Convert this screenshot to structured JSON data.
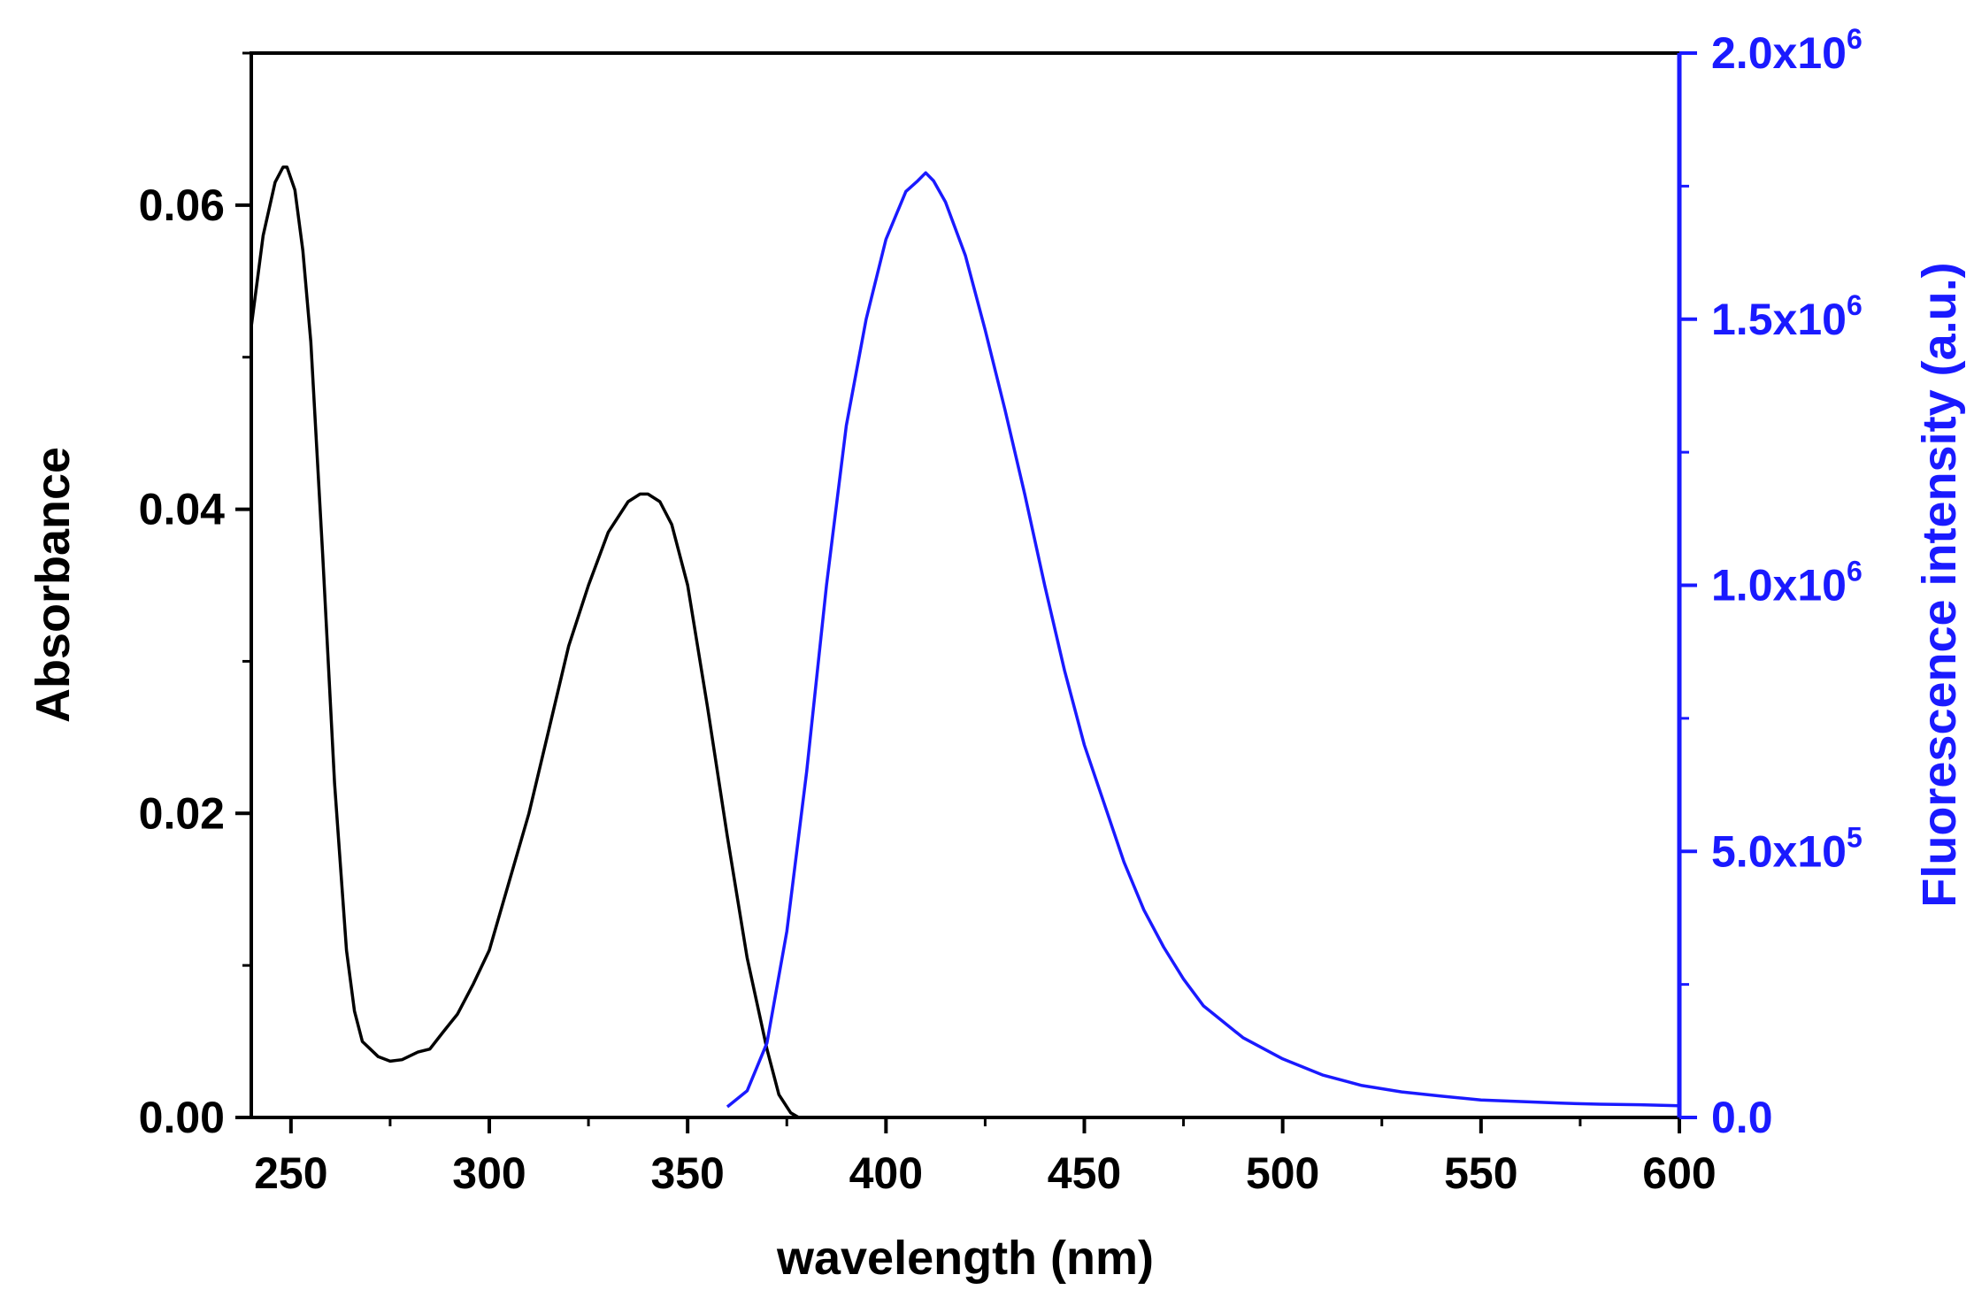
{
  "chart_data": {
    "type": "line",
    "title": "",
    "xlabel": "wavelength (nm)",
    "ylabel_left": "Absorbance",
    "ylabel_right": "Fluorescence intensity (a.u.)",
    "xlim": [
      240,
      600
    ],
    "ylim_left": [
      0,
      0.07
    ],
    "ylim_right": [
      0,
      2000000
    ],
    "grid": false,
    "legend": "none",
    "colors": {
      "left_axis": "#000000",
      "right_axis": "#1a1aff",
      "absorbance": "#000000",
      "fluorescence": "#1a1aff"
    },
    "x_ticks": [
      "250",
      "300",
      "350",
      "400",
      "450",
      "500",
      "550",
      "600"
    ],
    "x_tick_values": [
      250,
      300,
      350,
      400,
      450,
      500,
      550,
      600
    ],
    "y_left_ticks": [
      "0.00",
      "0.02",
      "0.04",
      "0.06"
    ],
    "y_left_tick_values": [
      0,
      0.02,
      0.04,
      0.06
    ],
    "y_right_ticks": [
      {
        "mantissa": "0.0",
        "exp": ""
      },
      {
        "mantissa": "5.0x10",
        "exp": "5"
      },
      {
        "mantissa": "1.0x10",
        "exp": "6"
      },
      {
        "mantissa": "1.5x10",
        "exp": "6"
      },
      {
        "mantissa": "2.0x10",
        "exp": "6"
      }
    ],
    "y_right_tick_values": [
      0,
      500000,
      1000000,
      1500000,
      2000000
    ],
    "series": [
      {
        "axis": "left",
        "x": [
          240,
          243,
          246,
          248,
          249,
          251,
          253,
          255,
          258,
          261,
          264,
          266,
          268,
          270,
          272,
          275,
          278,
          282,
          285,
          288,
          292,
          296,
          300,
          305,
          310,
          315,
          320,
          325,
          330,
          335,
          338,
          340,
          343,
          346,
          350,
          355,
          360,
          365,
          370,
          373,
          376,
          378,
          380
        ],
        "y": [
          0.052,
          0.058,
          0.0615,
          0.0625,
          0.0625,
          0.061,
          0.057,
          0.051,
          0.037,
          0.022,
          0.011,
          0.007,
          0.005,
          0.0045,
          0.004,
          0.0037,
          0.0038,
          0.0043,
          0.0045,
          0.0055,
          0.0068,
          0.0088,
          0.011,
          0.0155,
          0.02,
          0.0255,
          0.031,
          0.035,
          0.0385,
          0.0405,
          0.041,
          0.041,
          0.0405,
          0.039,
          0.035,
          0.027,
          0.0185,
          0.0105,
          0.0045,
          0.0015,
          0.0003,
          0.0,
          0.0
        ]
      },
      {
        "axis": "right",
        "x": [
          360,
          365,
          370,
          375,
          380,
          385,
          390,
          395,
          400,
          405,
          408,
          410,
          412,
          415,
          420,
          425,
          430,
          435,
          440,
          445,
          450,
          455,
          460,
          465,
          470,
          475,
          480,
          490,
          500,
          510,
          520,
          530,
          540,
          550,
          560,
          570,
          580,
          590,
          600
        ],
        "y": [
          20000,
          50000,
          140000,
          350000,
          650000,
          1000000,
          1300000,
          1500000,
          1650000,
          1740000,
          1760000,
          1775000,
          1760000,
          1720000,
          1620000,
          1480000,
          1330000,
          1170000,
          1000000,
          840000,
          700000,
          590000,
          480000,
          390000,
          320000,
          260000,
          210000,
          150000,
          110000,
          80000,
          60000,
          48000,
          40000,
          33000,
          30000,
          27000,
          25000,
          24000,
          22000
        ]
      }
    ]
  }
}
